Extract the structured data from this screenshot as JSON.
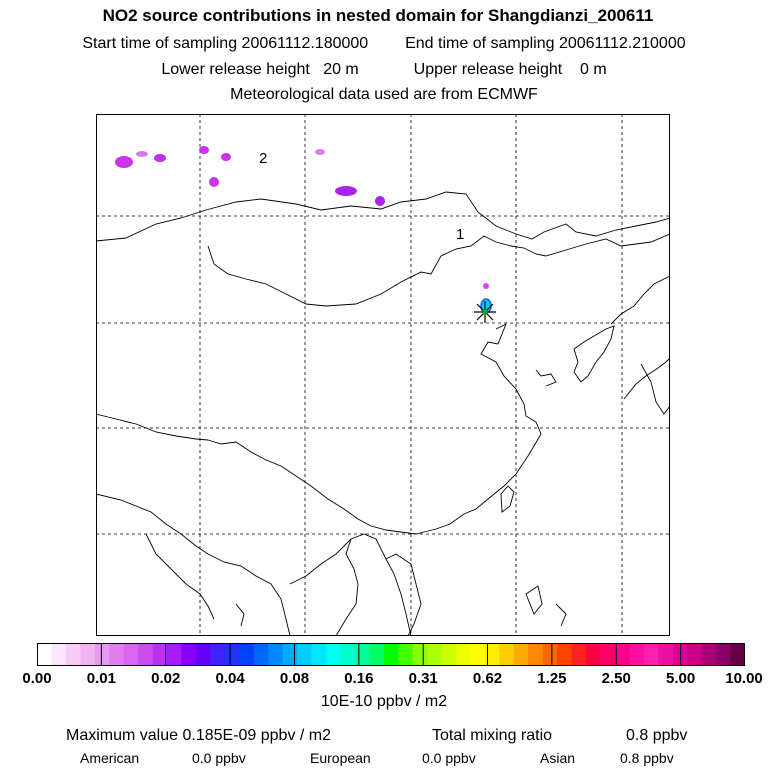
{
  "header": {
    "title": "NO2 source contributions in nested domain for Shangdianzi_200611",
    "start_label": "Start time of sampling 20061112.180000",
    "end_label": "End time of sampling 20061112.210000",
    "lower_label": "Lower release height   20 m",
    "upper_label": "Upper release height    0 m",
    "met_label": "Meteorological data used are from ECMWF"
  },
  "map": {
    "region_labels": [
      "2",
      "1"
    ],
    "station_marker": "star-cross-icon"
  },
  "colorbar": {
    "colors": [
      "#ffffff",
      "#fbe6fb",
      "#f6ccf6",
      "#f0b3f0",
      "#ea99f0",
      "#e07ff0",
      "#d866f0",
      "#cc4cf0",
      "#bb33f0",
      "#aa1aff",
      "#8800ff",
      "#6600ff",
      "#4422ff",
      "#2233ff",
      "#0044ff",
      "#0066ff",
      "#0088ff",
      "#00aaff",
      "#00ccff",
      "#00e6ff",
      "#00ffee",
      "#00ffcc",
      "#00ff99",
      "#00ff66",
      "#00ff00",
      "#44ff00",
      "#88ff00",
      "#aaff00",
      "#ccff00",
      "#eeff00",
      "#ffff00",
      "#ffee00",
      "#ffcc00",
      "#ffaa00",
      "#ff8800",
      "#ff6600",
      "#ff4400",
      "#ff2222",
      "#ff0044",
      "#ff0066",
      "#ff0088",
      "#ff10a0",
      "#ff20b0",
      "#ee10a0",
      "#dd0099",
      "#cc0088",
      "#aa0077",
      "#880066",
      "#660044"
    ],
    "ticks": [
      "0.00",
      "0.01",
      "0.02",
      "0.04",
      "0.08",
      "0.16",
      "0.31",
      "0.62",
      "1.25",
      "2.50",
      "5.00",
      "10.00"
    ],
    "units": "10E-10 ppbv / m2"
  },
  "stats": {
    "max_label": "Maximum value  0.185E-09 ppbv / m2",
    "total_label": "Total mixing ratio",
    "total_value": "0.8 ppbv",
    "american_label": "American",
    "american_value": "0.0 ppbv",
    "european_label": "European",
    "european_value": "0.0 ppbv",
    "asian_label": "Asian",
    "asian_value": "0.8 ppbv"
  }
}
